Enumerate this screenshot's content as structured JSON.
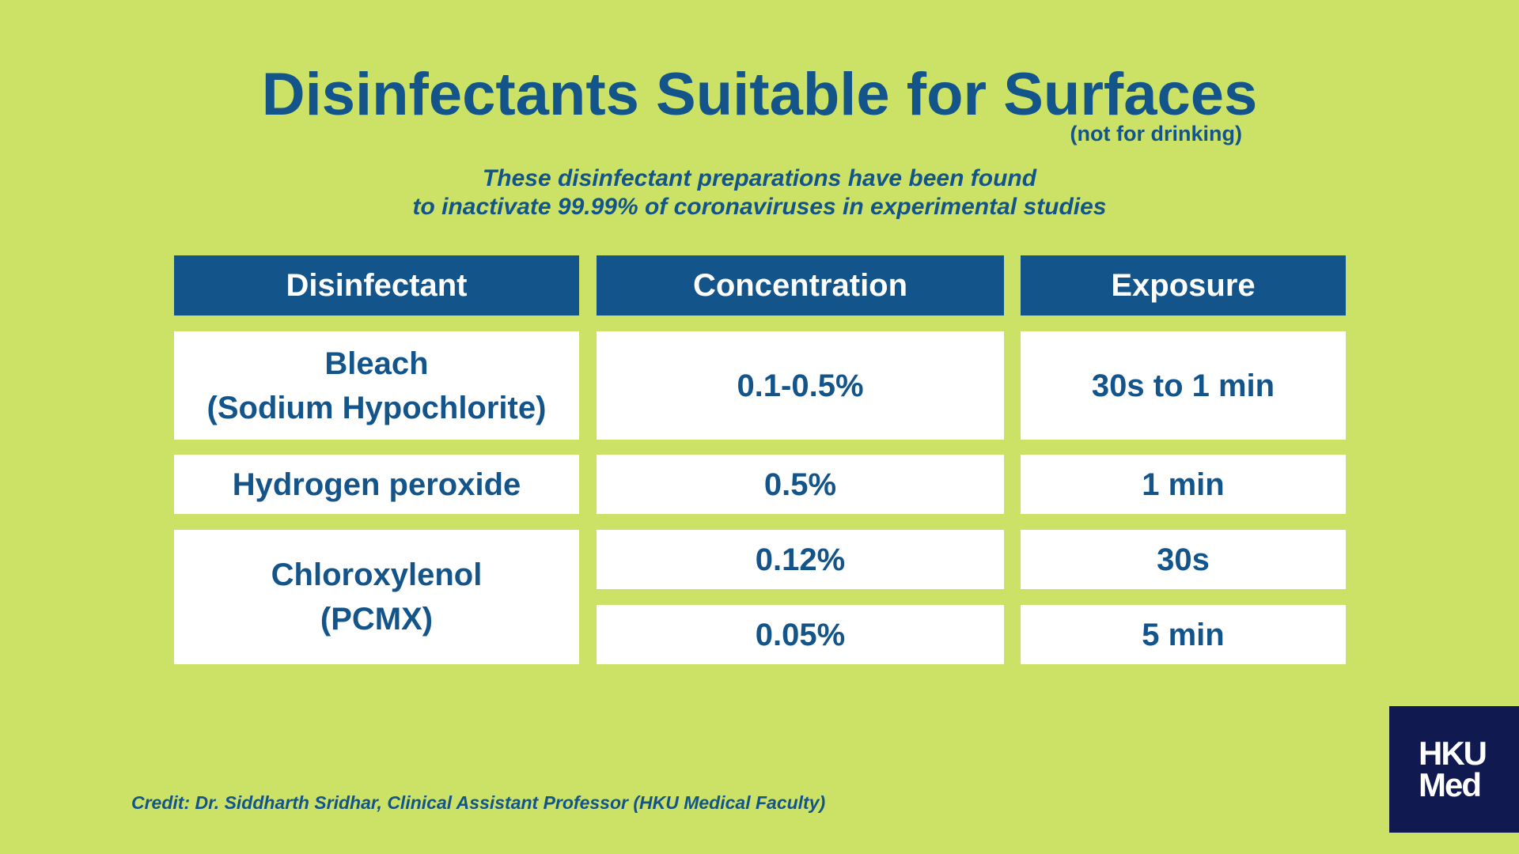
{
  "title": "Disinfectants Suitable for Surfaces",
  "title_note": "(not for drinking)",
  "subtitle": {
    "line1": "These disinfectant preparations have been found",
    "line2": "to inactivate 99.99% of coronaviruses in experimental studies"
  },
  "table": {
    "headers": {
      "disinfectant": "Disinfectant",
      "concentration": "Concentration",
      "exposure": "Exposure"
    },
    "rows": [
      {
        "disinfectant_line1": "Bleach",
        "disinfectant_line2": "(Sodium Hypochlorite)",
        "concentration": "0.1-0.5%",
        "exposure": "30s to 1 min"
      },
      {
        "disinfectant_line1": "Hydrogen peroxide",
        "concentration": "0.5%",
        "exposure": "1 min"
      },
      {
        "disinfectant_line1": "Chloroxylenol",
        "disinfectant_line2": "(PCMX)",
        "entries": [
          {
            "concentration": "0.12%",
            "exposure": "30s"
          },
          {
            "concentration": "0.05%",
            "exposure": "5 min"
          }
        ]
      }
    ]
  },
  "credit": "Credit: Dr. Siddharth Sridhar, Clinical Assistant Professor (HKU Medical Faculty)",
  "logo": {
    "line1": "HKU",
    "line2": "Med"
  },
  "colors": {
    "background": "#cbe266",
    "primary": "#13548a",
    "logo_bg": "#111a50",
    "cell_bg": "#ffffff"
  }
}
